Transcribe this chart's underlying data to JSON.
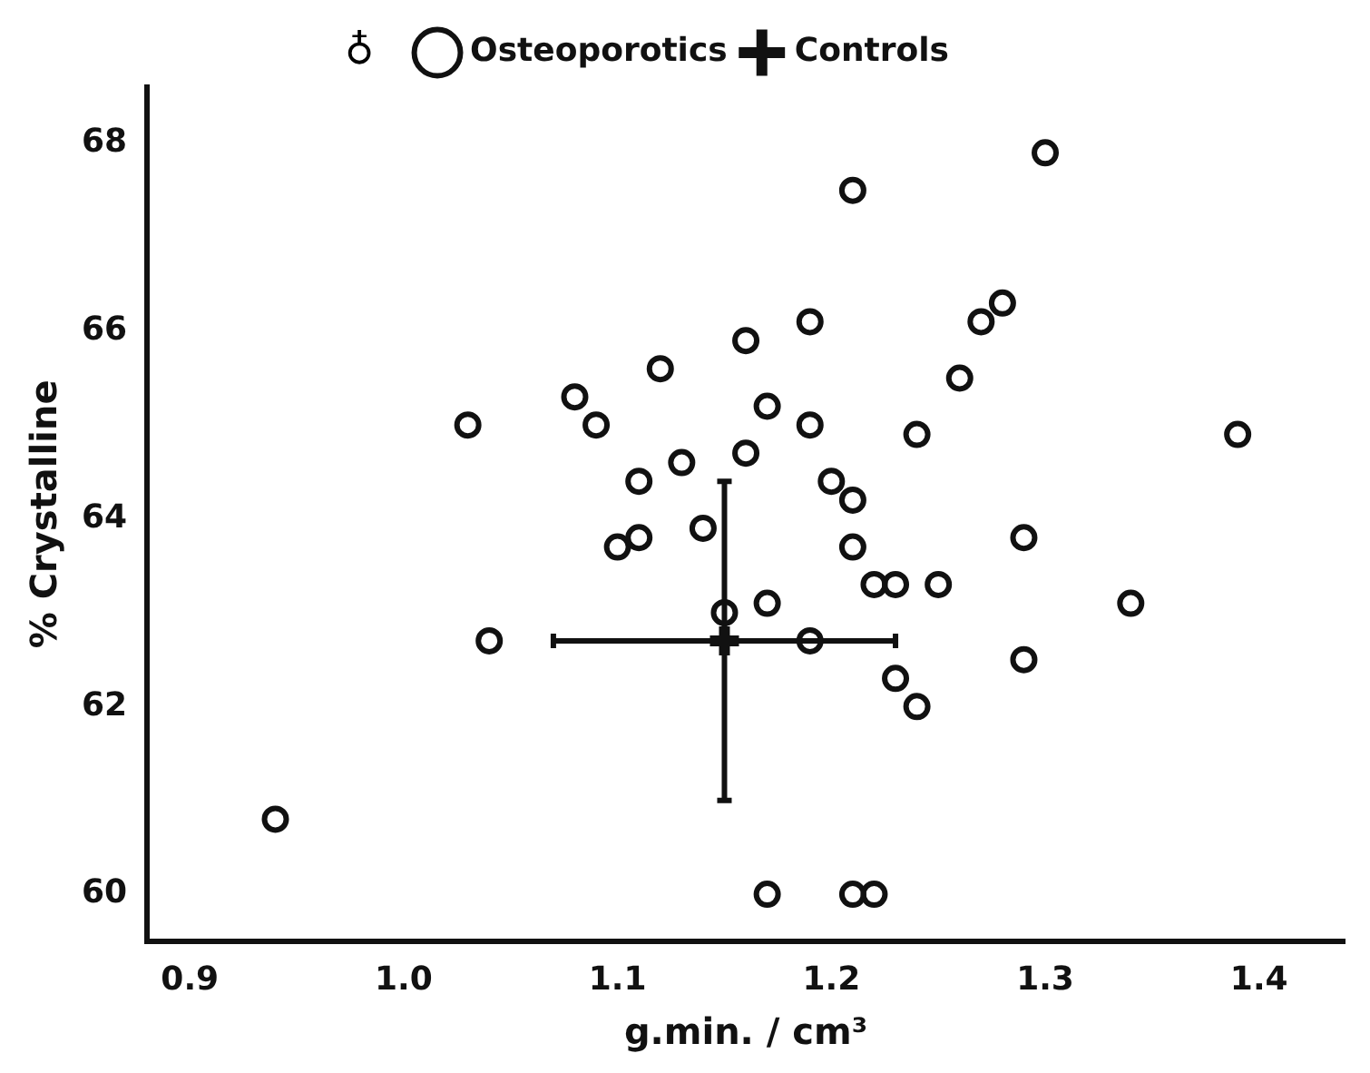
{
  "chart_data": {
    "type": "scatter",
    "xlabel": "g.min. / cm³",
    "ylabel": "% Crystalline",
    "annotations": [
      "♁"
    ],
    "xlim": [
      0.88,
      1.44
    ],
    "xticks": [
      {
        "value": 0.9,
        "label": "0.9"
      },
      {
        "value": 1.0,
        "label": "1.0"
      },
      {
        "value": 1.1,
        "label": "1.1"
      },
      {
        "value": 1.2,
        "label": "1.2"
      },
      {
        "value": 1.3,
        "label": "1.3"
      },
      {
        "value": 1.4,
        "label": "1.4"
      }
    ],
    "ylim": [
      59.5,
      68.6
    ],
    "yticks": [
      60,
      62,
      64,
      66,
      68
    ],
    "grid": false,
    "legend": "top",
    "series": [
      {
        "name": "Osteoporotics",
        "color": "#111111",
        "marker": "circle",
        "x": [
          0.94,
          1.03,
          1.04,
          1.08,
          1.09,
          1.1,
          1.11,
          1.11,
          1.12,
          1.13,
          1.14,
          1.16,
          1.16,
          1.17,
          1.17,
          1.17,
          1.19,
          1.19,
          1.2,
          1.21,
          1.21,
          1.21,
          1.22,
          1.23,
          1.21,
          1.22,
          1.23,
          1.24,
          1.24,
          1.25,
          1.26,
          1.27,
          1.28,
          1.29,
          1.29,
          1.3,
          1.34,
          1.39,
          1.15,
          1.19
        ],
        "values": [
          60.8,
          65.0,
          62.7,
          65.3,
          65.0,
          63.7,
          63.8,
          64.4,
          65.6,
          64.6,
          63.9,
          65.9,
          64.7,
          63.1,
          65.2,
          60.0,
          66.1,
          65.0,
          64.4,
          64.2,
          63.7,
          67.5,
          63.3,
          63.3,
          60.0,
          60.0,
          62.3,
          62.0,
          64.9,
          63.3,
          65.5,
          66.1,
          66.3,
          63.8,
          62.5,
          67.9,
          63.1,
          64.9,
          63.0,
          62.7
        ]
      },
      {
        "name": "Controls",
        "color": "#111111",
        "marker": "cross",
        "x": [
          1.15
        ],
        "values": [
          62.7
        ],
        "errors": [
          [
            61.0,
            64.4
          ]
        ],
        "xerrors": [
          [
            1.07,
            1.23
          ]
        ]
      }
    ]
  }
}
